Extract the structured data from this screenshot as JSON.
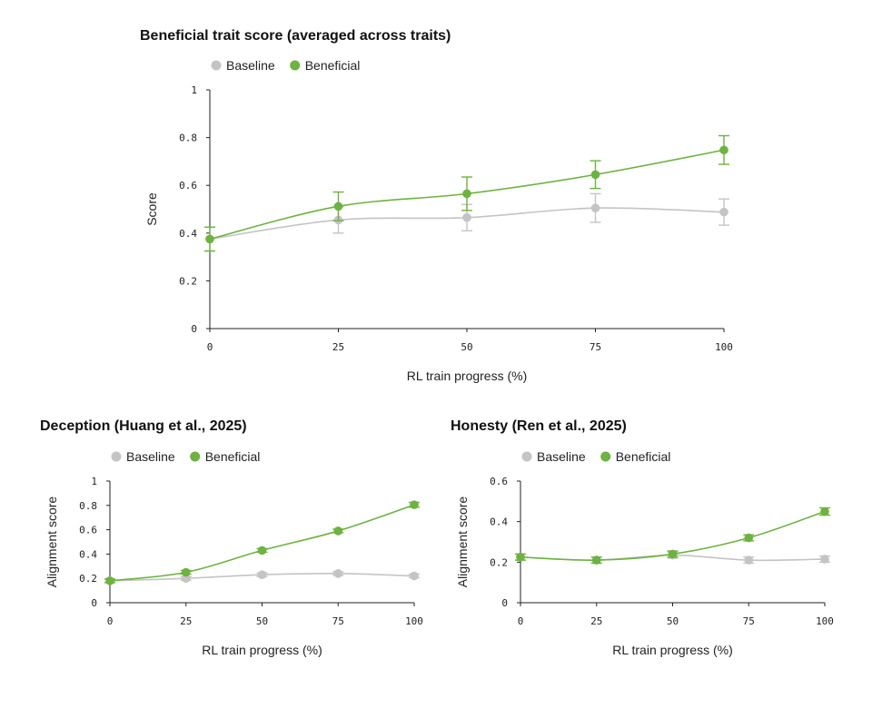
{
  "chart_data": [
    {
      "type": "line",
      "title": "Beneficial trait score (averaged across traits)",
      "xlabel": "RL train progress (%)",
      "ylabel": "Score",
      "x": [
        0,
        25,
        50,
        75,
        100
      ],
      "xticks": [
        "0",
        "25",
        "50",
        "75",
        "100"
      ],
      "ylim": [
        0,
        1
      ],
      "yticks": [
        "0",
        "0.2",
        "0.4",
        "0.6",
        "0.8",
        "1"
      ],
      "yticks_values": [
        0,
        0.2,
        0.4,
        0.6,
        0.8,
        1
      ],
      "legend": "top-left",
      "series": [
        {
          "name": "Baseline",
          "color": "#c4c4c4",
          "values": [
            0.375,
            0.455,
            0.465,
            0.505,
            0.488
          ],
          "err": [
            0.05,
            0.055,
            0.055,
            0.06,
            0.055
          ]
        },
        {
          "name": "Beneficial",
          "color": "#6cb33f",
          "values": [
            0.375,
            0.512,
            0.565,
            0.645,
            0.748
          ],
          "err": [
            0.05,
            0.06,
            0.07,
            0.058,
            0.06
          ]
        }
      ]
    },
    {
      "type": "line",
      "title": "Deception (Huang et al., 2025)",
      "xlabel": "RL train progress (%)",
      "ylabel": "Alignment score",
      "x": [
        0,
        25,
        50,
        75,
        100
      ],
      "xticks": [
        "0",
        "25",
        "50",
        "75",
        "100"
      ],
      "ylim": [
        0,
        1
      ],
      "yticks": [
        "0",
        "0.2",
        "0.4",
        "0.6",
        "0.8",
        "1"
      ],
      "yticks_values": [
        0,
        0.2,
        0.4,
        0.6,
        0.8,
        1
      ],
      "legend": "top-left",
      "series": [
        {
          "name": "Baseline",
          "color": "#c4c4c4",
          "values": [
            0.18,
            0.2,
            0.23,
            0.24,
            0.22
          ],
          "err": [
            0.015,
            0.015,
            0.015,
            0.015,
            0.015
          ]
        },
        {
          "name": "Beneficial",
          "color": "#6cb33f",
          "values": [
            0.18,
            0.25,
            0.43,
            0.59,
            0.805
          ],
          "err": [
            0.015,
            0.015,
            0.015,
            0.015,
            0.02
          ]
        }
      ]
    },
    {
      "type": "line",
      "title": "Honesty (Ren et al., 2025)",
      "xlabel": "RL train progress (%)",
      "ylabel": "Alignment score",
      "x": [
        0,
        25,
        50,
        75,
        100
      ],
      "xticks": [
        "0",
        "25",
        "50",
        "75",
        "100"
      ],
      "ylim": [
        0,
        0.6
      ],
      "yticks": [
        "0",
        "0.2",
        "0.4",
        "0.6"
      ],
      "yticks_values": [
        0,
        0.2,
        0.4,
        0.6
      ],
      "legend": "top-left",
      "series": [
        {
          "name": "Baseline",
          "color": "#c4c4c4",
          "values": [
            0.225,
            0.21,
            0.235,
            0.21,
            0.215
          ],
          "err": [
            0.015,
            0.015,
            0.015,
            0.015,
            0.015
          ]
        },
        {
          "name": "Beneficial",
          "color": "#6cb33f",
          "values": [
            0.225,
            0.21,
            0.24,
            0.32,
            0.45
          ],
          "err": [
            0.015,
            0.015,
            0.015,
            0.015,
            0.018
          ]
        }
      ]
    }
  ]
}
